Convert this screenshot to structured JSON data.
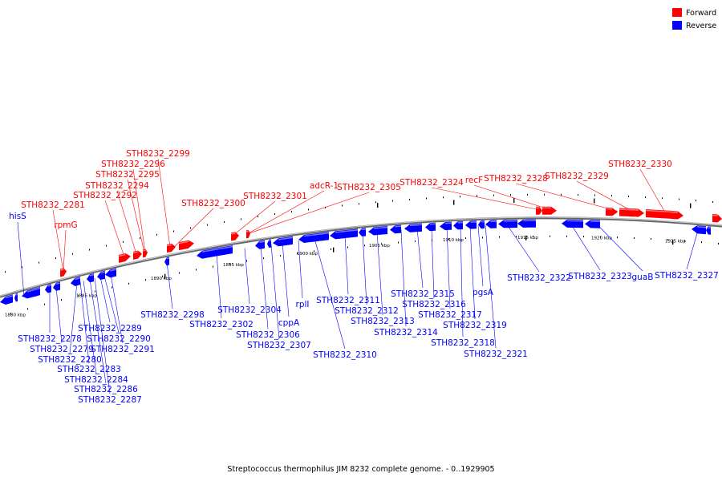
{
  "caption": "Streptococcus thermophilus JIM 8232 complete genome. - 0..1929905",
  "legend": [
    {
      "label": "Forward",
      "color": "#ff0000"
    },
    {
      "label": "Reverse",
      "color": "#0000ff"
    }
  ],
  "colors": {
    "forward": "#ff0000",
    "reverse": "#0000ff",
    "backbone": "#888888"
  },
  "kbp_ticks": [
    "1880 kbp",
    "1885 kbp",
    "1890 kbp",
    "1895 kbp",
    "1900 kbp",
    "1905 kbp",
    "1910 kbp",
    "1915 kbp",
    "1920 kbp",
    "1925 kbp"
  ],
  "forward_labels": [
    "rpmG",
    "STH8232_2281",
    "STH8232_2292",
    "STH8232_2294",
    "STH8232_2295",
    "STH8232_2296",
    "STH8232_2299",
    "STH8232_2300",
    "STH8232_2301",
    "adcR-1",
    "STH8232_2305",
    "STH8232_2324",
    "recF",
    "STH8232_2328",
    "STH8232_2329",
    "STH8232_2330"
  ],
  "reverse_labels": [
    "hisS",
    "STH8232_2278",
    "STH8232_2279",
    "STH8232_2280",
    "STH8232_2283",
    "STH8232_2284",
    "STH8232_2286",
    "STH8232_2287",
    "STH8232_2289",
    "STH8232_2290",
    "STH8232_2291",
    "STH8232_2298",
    "STH8232_2302",
    "STH8232_2304",
    "cppA",
    "STH8232_2306",
    "STH8232_2307",
    "rplI",
    "STH8232_2310",
    "STH8232_2311",
    "STH8232_2312",
    "STH8232_2313",
    "STH8232_2314",
    "STH8232_2315",
    "STH8232_2316",
    "STH8232_2317",
    "pgsA",
    "STH8232_2319",
    "STH8232_2318",
    "STH8232_2321",
    "STH8232_2322",
    "STH8232_2323",
    "guaB",
    "STH8232_2327"
  ]
}
